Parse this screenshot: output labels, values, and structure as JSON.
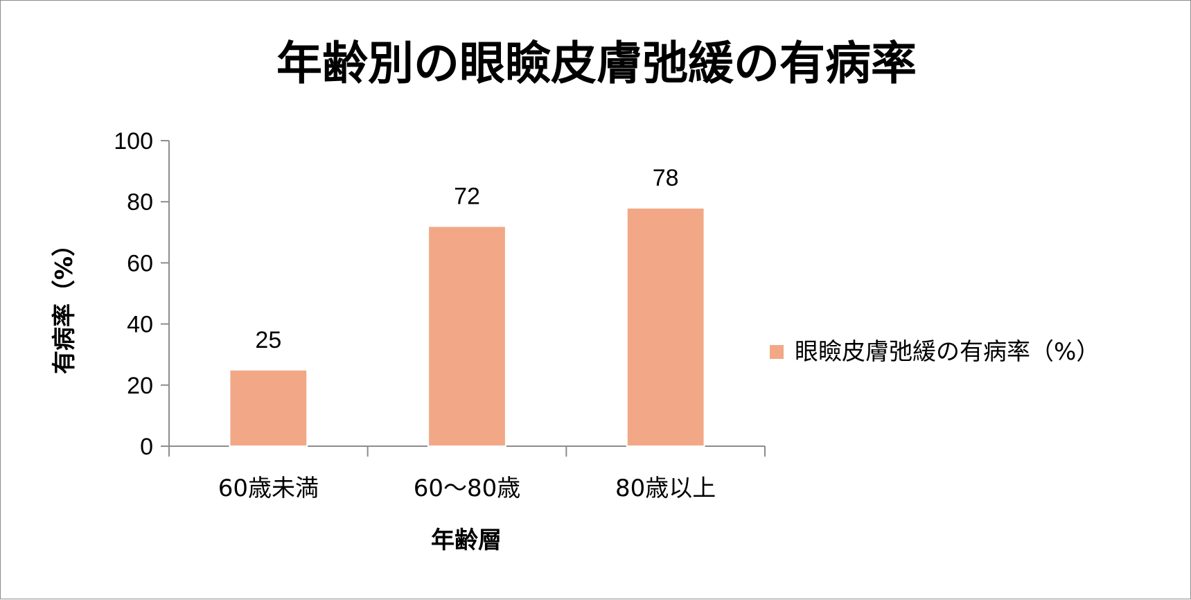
{
  "chart_data": {
    "type": "bar",
    "title": "年齢別の眼瞼皮膚弛緩の有病率",
    "xlabel": "年齢層",
    "ylabel": "有病率（%）",
    "categories": [
      "60歳未満",
      "60～80歳",
      "80歳以上"
    ],
    "series": [
      {
        "name": "眼瞼皮膚弛緩の有病率（%）",
        "values": [
          25,
          72,
          78
        ],
        "color": "#f2a886"
      }
    ],
    "ylim": [
      0,
      100
    ],
    "yticks": [
      0,
      20,
      40,
      60,
      80,
      100
    ],
    "data_labels": [
      "25",
      "72",
      "78"
    ],
    "legend_position": "right",
    "grid": false
  }
}
